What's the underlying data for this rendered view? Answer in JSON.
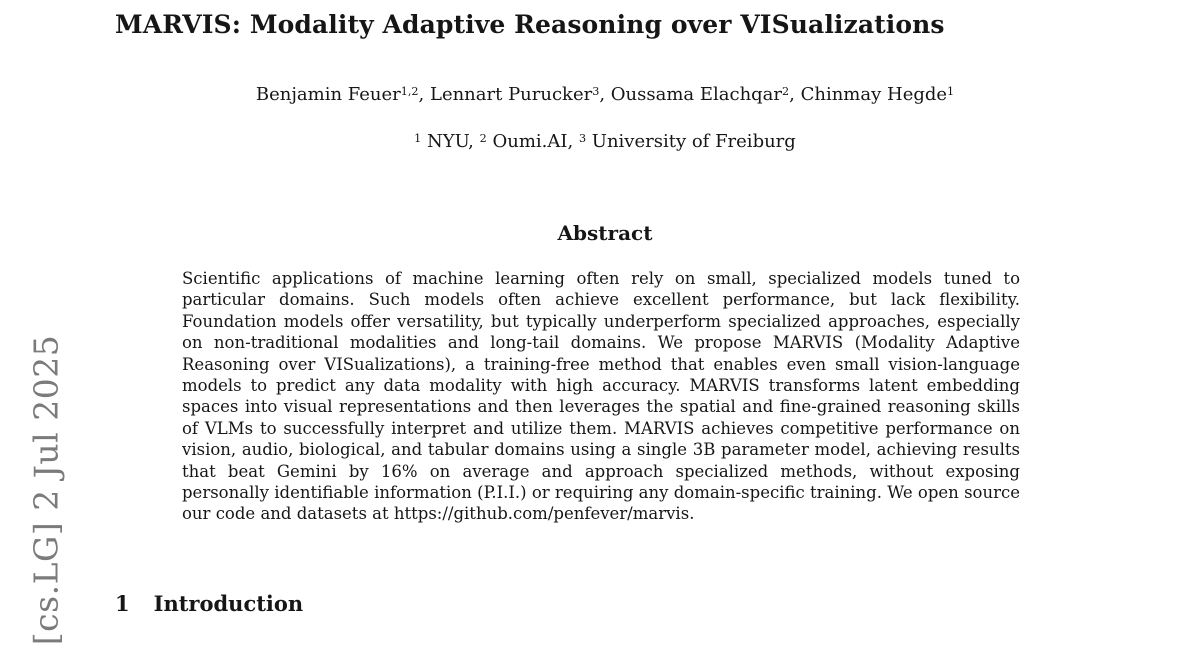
{
  "arxiv_stamp": {
    "text": "[cs.LG]  2 Jul 2025",
    "color": "#7b7b7b"
  },
  "paper": {
    "title": "MARVIS: Modality Adaptive Reasoning over VISualizations",
    "authors": [
      {
        "name": "Benjamin Feuer",
        "sup": "1,2",
        "sep": ", "
      },
      {
        "name": "Lennart Purucker",
        "sup": "3",
        "sep": ", "
      },
      {
        "name": "Oussama Elachqar",
        "sup": "2",
        "sep": ", "
      },
      {
        "name": "Chinmay Hegde",
        "sup": "1",
        "sep": ""
      }
    ],
    "affiliations": [
      {
        "sup": "1",
        "name": "NYU",
        "sep": ", "
      },
      {
        "sup": "2",
        "name": "Oumi.AI",
        "sep": ", "
      },
      {
        "sup": "3",
        "name": "University of Freiburg",
        "sep": ""
      }
    ],
    "abstract": {
      "heading": "Abstract",
      "text_before": "Scientific applications of machine learning often rely on small, specialized models tuned to particular domains. Such models often achieve excellent performance, but lack flexibility. Foundation models offer versatility, but typically underperform specialized approaches, especially on non-traditional modalities and long-tail domains. We propose MARVIS (Modality Adaptive Reasoning over VISualizations), a training-free method that enables even small vision-language models to predict any data modality with high accuracy. MARVIS transforms latent embedding spaces into visual representations and then leverages the spatial and fine-grained reasoning skills of VLMs to successfully interpret and utilize them. MARVIS achieves competitive performance on vision, audio, biological, and tabular domains using a single 3B parameter model, achieving results that beat Gemini by 16% on average and approach specialized methods, without exposing personally identifiable information (P.I.I.) or requiring any domain-specific training. We open source our code and datasets at ",
      "url": "https://github.com/penfever/marvis",
      "text_after": "."
    },
    "sections": [
      {
        "number": "1",
        "title": "Introduction"
      }
    ]
  }
}
